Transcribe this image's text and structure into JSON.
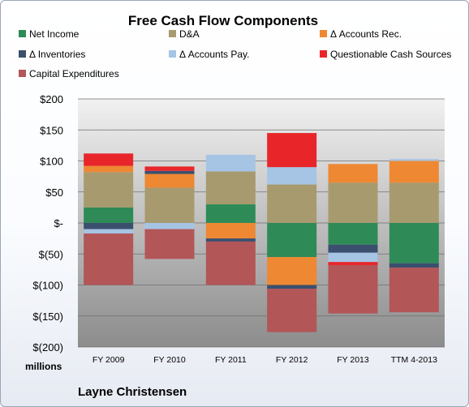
{
  "chart_data": {
    "type": "bar",
    "stacked": true,
    "title": "Free Cash Flow Components",
    "units_label": "millions",
    "author": "Layne Christensen",
    "categories": [
      "FY 2009",
      "FY 2010",
      "FY 2011",
      "FY 2012",
      "FY 2013",
      "TTM 4-2013"
    ],
    "ylim": [
      -200,
      200
    ],
    "y_tick_labels": [
      "$200",
      "$150",
      "$100",
      "$50",
      "$-",
      "$(50)",
      "$(100)",
      "$(150)",
      "$(200)"
    ],
    "legend_position": "top",
    "grid": true,
    "series": [
      {
        "name": "Net Income",
        "color": "#2e8b57",
        "values": [
          25,
          0,
          30,
          -55,
          -35,
          -65
        ]
      },
      {
        "name": "D&A",
        "color": "#a79a6e",
        "values": [
          57,
          57,
          53,
          62,
          65,
          65
        ]
      },
      {
        "name": "Δ Accounts Rec.",
        "color": "#ee8833",
        "values": [
          10,
          22,
          -25,
          -45,
          30,
          35
        ]
      },
      {
        "name": "Δ Inventories",
        "color": "#3b4f6e",
        "values": [
          -10,
          5,
          -5,
          -6,
          -13,
          -7
        ]
      },
      {
        "name": "Δ Accounts Pay.",
        "color": "#a6c4e4",
        "values": [
          -7,
          -10,
          27,
          28,
          -15,
          3
        ]
      },
      {
        "name": "Questionable Cash Sources",
        "color": "#e8262a",
        "values": [
          20,
          7,
          0,
          55,
          -5,
          0
        ]
      },
      {
        "name": "Capital Expenditures",
        "color": "#b25658",
        "values": [
          -83,
          -48,
          -70,
          -70,
          -78,
          -72
        ]
      }
    ]
  }
}
